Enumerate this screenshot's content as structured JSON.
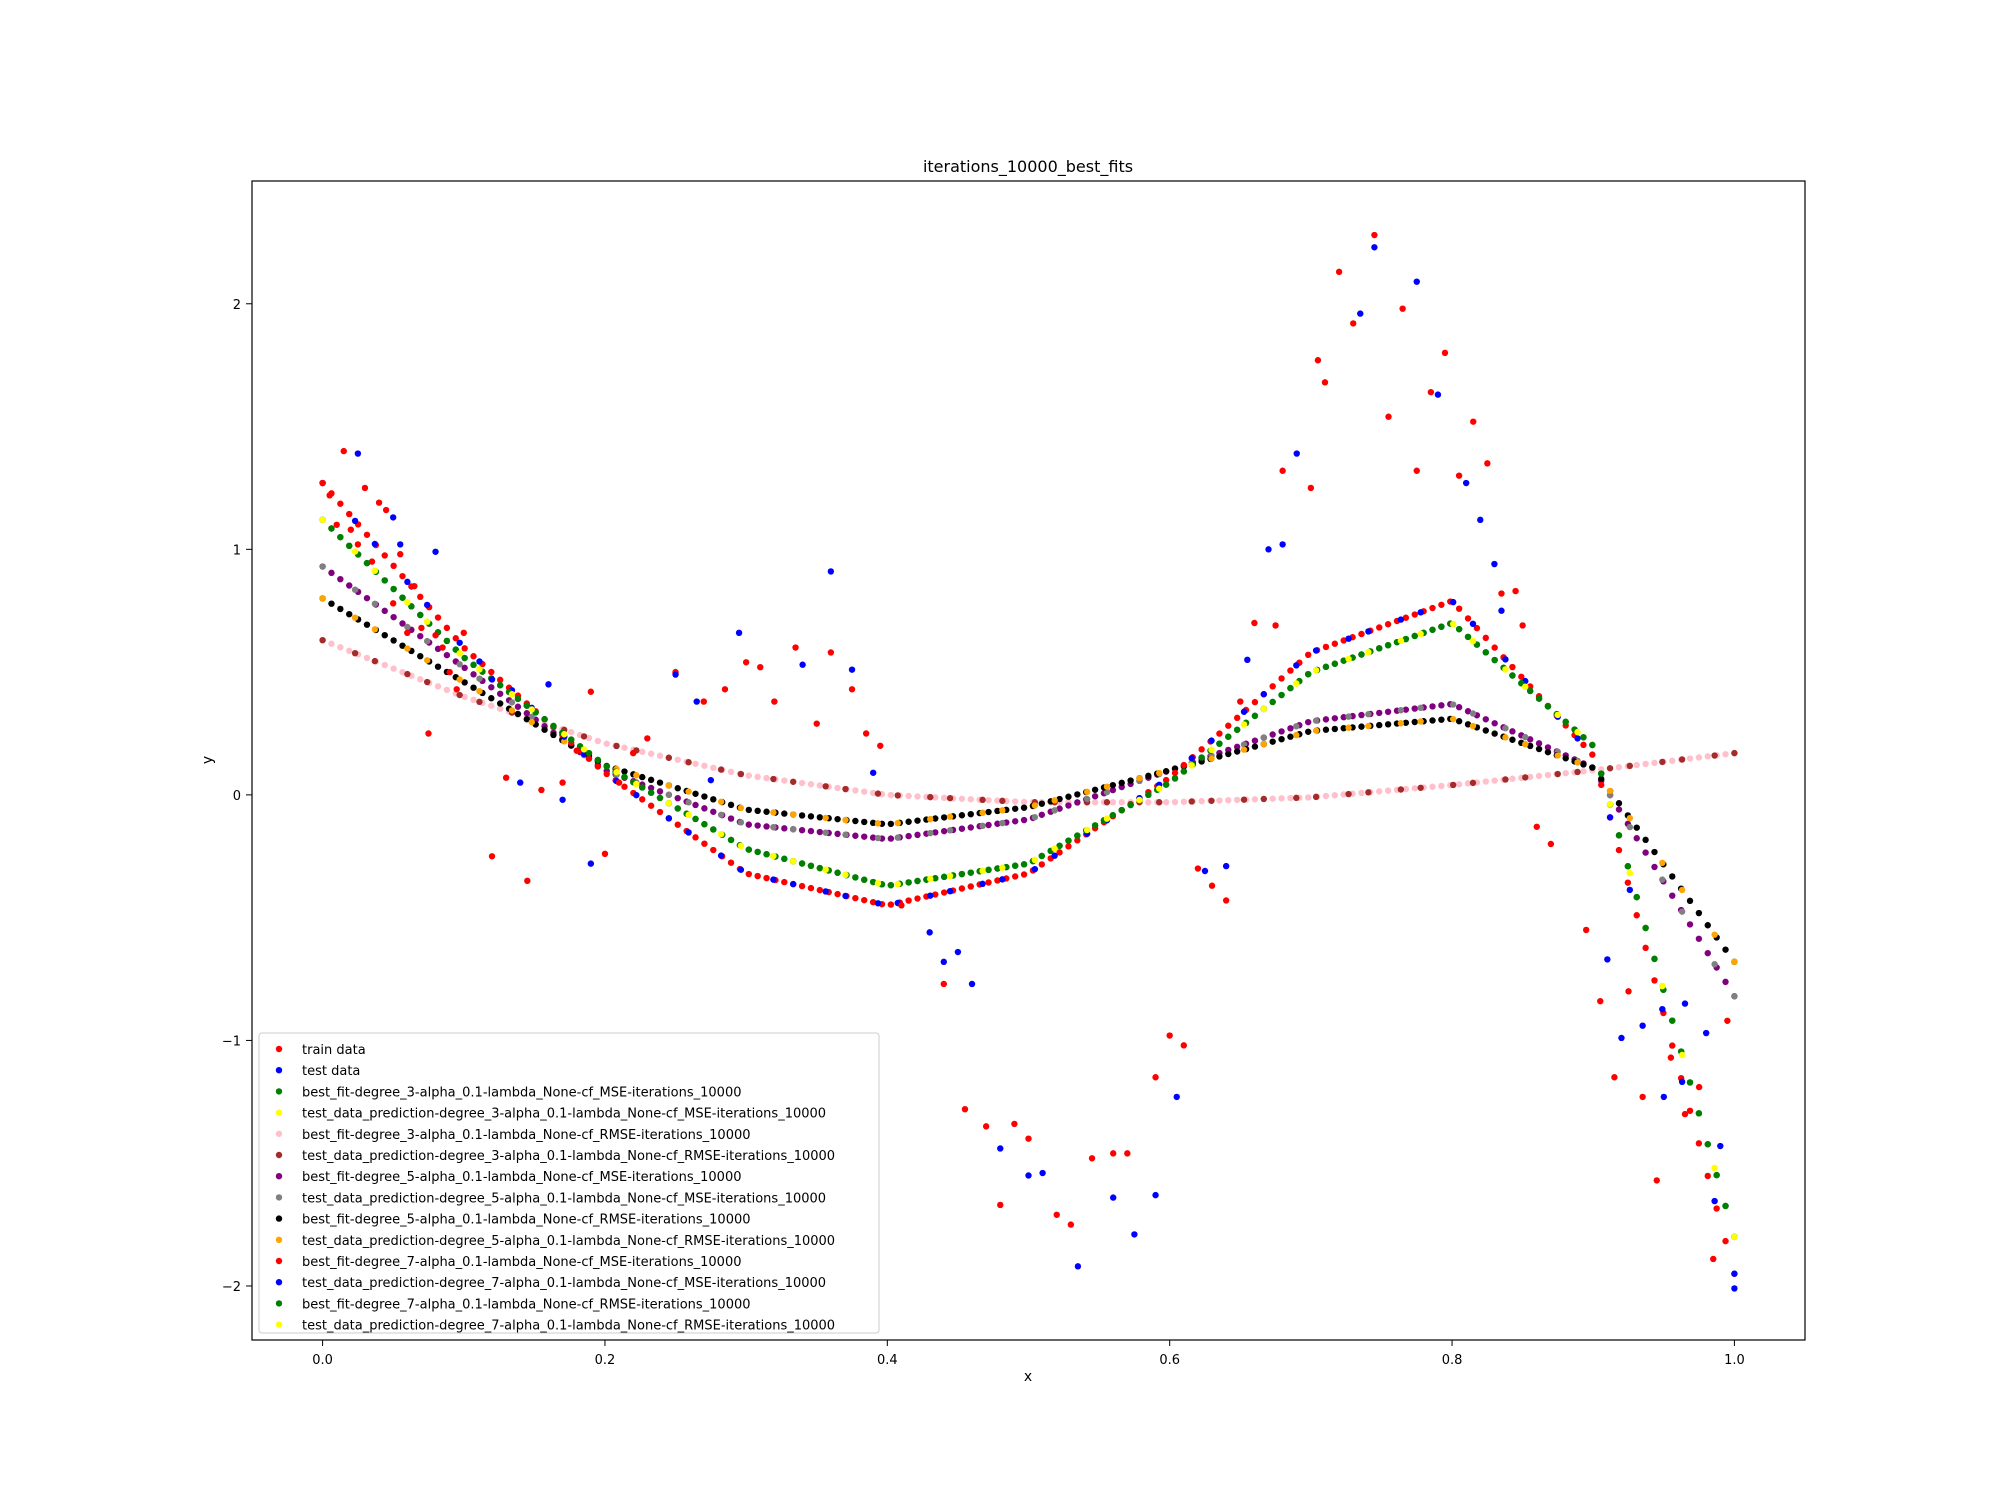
{
  "chart_data": {
    "type": "scatter",
    "title": "iterations_10000_best_fits",
    "xlabel": "x",
    "ylabel": "y",
    "xlim": [
      -0.05,
      1.05
    ],
    "ylim": [
      -2.22,
      2.5
    ],
    "xticks": [
      0.0,
      0.2,
      0.4,
      0.6,
      0.8,
      1.0
    ],
    "xtick_labels": [
      "0.0",
      "0.2",
      "0.4",
      "0.6",
      "0.8",
      "1.0"
    ],
    "yticks": [
      -2,
      -1,
      0,
      1,
      2
    ],
    "ytick_labels": [
      "−2",
      "−1",
      "0",
      "1",
      "2"
    ],
    "grid": false,
    "legend_position": "lower-left",
    "scatter_series": [
      {
        "name": "train data",
        "color": "#ff0000",
        "x": [
          0.0,
          0.005,
          0.01,
          0.015,
          0.02,
          0.025,
          0.03,
          0.035,
          0.04,
          0.045,
          0.05,
          0.055,
          0.06,
          0.065,
          0.07,
          0.075,
          0.08,
          0.085,
          0.09,
          0.095,
          0.1,
          0.12,
          0.13,
          0.145,
          0.155,
          0.17,
          0.18,
          0.19,
          0.2,
          0.21,
          0.22,
          0.23,
          0.25,
          0.27,
          0.285,
          0.3,
          0.31,
          0.32,
          0.335,
          0.35,
          0.36,
          0.375,
          0.385,
          0.395,
          0.41,
          0.44,
          0.455,
          0.47,
          0.48,
          0.49,
          0.5,
          0.52,
          0.53,
          0.545,
          0.56,
          0.57,
          0.59,
          0.6,
          0.61,
          0.62,
          0.63,
          0.64,
          0.65,
          0.66,
          0.675,
          0.68,
          0.7,
          0.705,
          0.71,
          0.72,
          0.73,
          0.745,
          0.755,
          0.765,
          0.775,
          0.785,
          0.795,
          0.805,
          0.815,
          0.825,
          0.835,
          0.845,
          0.85,
          0.86,
          0.87,
          0.895,
          0.905,
          0.915,
          0.925,
          0.935,
          0.945,
          0.955,
          0.965,
          0.975,
          0.985,
          0.995
        ],
        "y": [
          1.27,
          1.22,
          1.1,
          1.4,
          1.08,
          1.02,
          1.25,
          0.95,
          1.19,
          1.16,
          0.78,
          0.98,
          0.66,
          0.85,
          0.68,
          0.25,
          0.65,
          0.6,
          0.5,
          0.43,
          0.66,
          -0.25,
          0.07,
          -0.35,
          0.02,
          0.05,
          0.18,
          0.42,
          -0.24,
          0.05,
          0.17,
          0.23,
          0.5,
          0.38,
          0.43,
          0.54,
          0.52,
          0.38,
          0.6,
          0.29,
          0.58,
          0.43,
          0.25,
          0.2,
          -0.45,
          -0.77,
          -1.28,
          -1.35,
          -1.67,
          -1.34,
          -1.4,
          -1.71,
          -1.75,
          -1.48,
          -1.46,
          -1.46,
          -1.15,
          -0.98,
          -1.02,
          -0.3,
          -0.37,
          -0.43,
          0.38,
          0.7,
          0.69,
          1.32,
          1.25,
          1.77,
          1.68,
          2.13,
          1.92,
          2.28,
          1.54,
          1.98,
          1.32,
          1.64,
          1.8,
          1.3,
          1.52,
          1.35,
          0.82,
          0.83,
          0.69,
          -0.13,
          -0.2,
          -0.55,
          -0.84,
          -1.15,
          -0.8,
          -1.23,
          -1.57,
          -1.07,
          -1.3,
          -1.19,
          -1.89,
          -0.92
        ]
      },
      {
        "name": "test data",
        "color": "#0000ff",
        "x": [
          0.025,
          0.05,
          0.055,
          0.08,
          0.12,
          0.14,
          0.16,
          0.17,
          0.19,
          0.25,
          0.265,
          0.275,
          0.295,
          0.34,
          0.36,
          0.375,
          0.39,
          0.43,
          0.44,
          0.45,
          0.46,
          0.48,
          0.5,
          0.51,
          0.535,
          0.56,
          0.575,
          0.59,
          0.605,
          0.625,
          0.64,
          0.655,
          0.67,
          0.68,
          0.69,
          0.735,
          0.745,
          0.775,
          0.79,
          0.81,
          0.82,
          0.83,
          0.835,
          0.91,
          0.92,
          0.935,
          0.95,
          0.965,
          0.98,
          0.99,
          1.0
        ],
        "y": [
          1.39,
          1.13,
          1.02,
          0.99,
          0.47,
          0.05,
          0.45,
          -0.02,
          -0.28,
          0.49,
          0.38,
          0.06,
          0.66,
          0.53,
          0.91,
          0.51,
          0.09,
          -0.56,
          -0.68,
          -0.64,
          -0.77,
          -1.44,
          -1.55,
          -1.54,
          -1.92,
          -1.64,
          -1.79,
          -1.63,
          -1.23,
          -0.31,
          -0.29,
          0.55,
          1.0,
          1.02,
          1.39,
          1.96,
          2.23,
          2.09,
          1.63,
          1.27,
          1.12,
          0.94,
          0.75,
          -0.67,
          -0.99,
          -0.94,
          -1.23,
          -0.85,
          -0.97,
          -1.43,
          -2.01
        ]
      }
    ],
    "curve_series": [
      {
        "name": "best_fit-degree_3-alpha_0.1-lambda_None-cf_MSE-iterations_10000",
        "color": "#008000",
        "model": "deg3",
        "sample": "fit"
      },
      {
        "name": "test_data_prediction-degree_3-alpha_0.1-lambda_None-cf_MSE-iterations_10000",
        "color": "#ffff00",
        "model": "deg3",
        "sample": "test"
      },
      {
        "name": "best_fit-degree_3-alpha_0.1-lambda_None-cf_RMSE-iterations_10000",
        "color": "#ffc0cb",
        "model": "deg3r",
        "sample": "fit"
      },
      {
        "name": "test_data_prediction-degree_3-alpha_0.1-lambda_None-cf_RMSE-iterations_10000",
        "color": "#a52a2a",
        "model": "deg3r",
        "sample": "test"
      },
      {
        "name": "best_fit-degree_5-alpha_0.1-lambda_None-cf_MSE-iterations_10000",
        "color": "#800080",
        "model": "deg5",
        "sample": "fit"
      },
      {
        "name": "test_data_prediction-degree_5-alpha_0.1-lambda_None-cf_MSE-iterations_10000",
        "color": "#808080",
        "model": "deg5",
        "sample": "test"
      },
      {
        "name": "best_fit-degree_5-alpha_0.1-lambda_None-cf_RMSE-iterations_10000",
        "color": "#000000",
        "model": "deg5r",
        "sample": "fit"
      },
      {
        "name": "test_data_prediction-degree_5-alpha_0.1-lambda_None-cf_RMSE-iterations_10000",
        "color": "#ffa500",
        "model": "deg5r",
        "sample": "test"
      },
      {
        "name": "best_fit-degree_7-alpha_0.1-lambda_None-cf_MSE-iterations_10000",
        "color": "#ff0000",
        "model": "deg7",
        "sample": "fit"
      },
      {
        "name": "test_data_prediction-degree_7-alpha_0.1-lambda_None-cf_MSE-iterations_10000",
        "color": "#0000ff",
        "model": "deg7",
        "sample": "test"
      },
      {
        "name": "best_fit-degree_7-alpha_0.1-lambda_None-cf_RMSE-iterations_10000",
        "color": "#008000",
        "model": "deg7r",
        "sample": "fit"
      },
      {
        "name": "test_data_prediction-degree_7-alpha_0.1-lambda_None-cf_RMSE-iterations_10000",
        "color": "#ffff00",
        "model": "deg7r",
        "sample": "test"
      }
    ],
    "curve_knots": {
      "deg3": {
        "x": [
          0,
          0.1,
          0.2,
          0.3,
          0.4,
          0.5,
          0.6,
          0.7,
          0.8,
          0.9,
          1.0
        ],
        "y": [
          1.12,
          0.56,
          0.12,
          -0.22,
          -0.37,
          -0.28,
          0.05,
          0.5,
          0.7,
          0.2,
          -1.8
        ]
      },
      "deg3r": {
        "x": [
          0,
          0.1,
          0.2,
          0.3,
          0.4,
          0.5,
          0.6,
          0.7,
          0.8,
          0.9,
          1.0
        ],
        "y": [
          0.63,
          0.4,
          0.21,
          0.08,
          0.0,
          -0.03,
          -0.03,
          -0.01,
          0.04,
          0.1,
          0.17
        ]
      },
      "deg5": {
        "x": [
          0,
          0.1,
          0.2,
          0.3,
          0.4,
          0.5,
          0.6,
          0.7,
          0.8,
          0.9,
          1.0
        ],
        "y": [
          0.93,
          0.52,
          0.1,
          -0.12,
          -0.18,
          -0.1,
          0.1,
          0.3,
          0.37,
          0.11,
          -0.82
        ]
      },
      "deg5r": {
        "x": [
          0,
          0.1,
          0.2,
          0.3,
          0.4,
          0.5,
          0.6,
          0.7,
          0.8,
          0.9,
          1.0
        ],
        "y": [
          0.8,
          0.46,
          0.12,
          -0.06,
          -0.12,
          -0.05,
          0.1,
          0.26,
          0.31,
          0.11,
          -0.68
        ]
      },
      "deg7": {
        "x": [
          0,
          0.1,
          0.2,
          0.3,
          0.4,
          0.5,
          0.6,
          0.7,
          0.8,
          0.9,
          1.0
        ],
        "y": [
          1.27,
          0.6,
          0.09,
          -0.32,
          -0.45,
          -0.32,
          0.07,
          0.58,
          0.79,
          0.16,
          -1.95
        ]
      },
      "deg7r": {
        "x": [
          0,
          0.1,
          0.2,
          0.3,
          0.4,
          0.5,
          0.6,
          0.7,
          0.8,
          0.9,
          1.0
        ],
        "y": [
          1.12,
          0.56,
          0.12,
          -0.22,
          -0.37,
          -0.28,
          0.05,
          0.5,
          0.7,
          0.2,
          -1.8
        ]
      }
    }
  }
}
